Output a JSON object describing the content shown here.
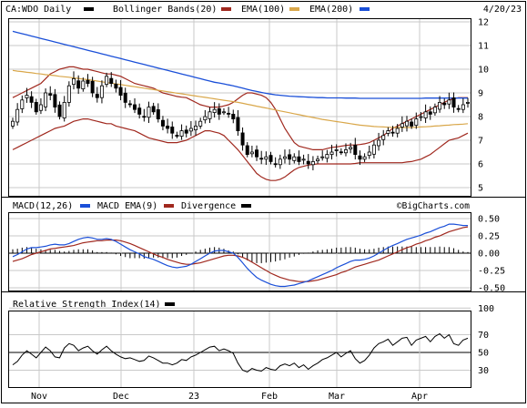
{
  "header": {
    "symbol_label": "CA:WDO Daily",
    "date": "4/20/23",
    "legend": [
      {
        "label": "Bollinger Bands(20)",
        "color": "#000000"
      },
      {
        "label": "EMA(100)",
        "color": "#1a4fd8"
      },
      {
        "label": "EMA(200)",
        "color": "#d9a74a"
      }
    ],
    "legend_colors_after": [
      "#000000",
      "#a0281e",
      "#d9a74a",
      "#1a4fd8"
    ]
  },
  "macd": {
    "title": "MACD(12,26)",
    "ema_label": "MACD EMA(9)",
    "divergence_label": "Divergence",
    "watermark": "©BigCharts.com"
  },
  "rsi": {
    "title": "Relative Strength Index(14)"
  },
  "chart_data": [
    {
      "type": "candlestick",
      "panel": "price",
      "ylim": [
        5,
        12
      ],
      "yticks": [
        "5",
        "6",
        "7",
        "8",
        "9",
        "10",
        "11",
        "12"
      ],
      "x_labels": [
        "Nov",
        "Dec",
        "23",
        "Feb",
        "Mar",
        "Apr"
      ],
      "close": [
        7.8,
        8.3,
        8.7,
        8.9,
        8.6,
        8.2,
        8.5,
        9.0,
        8.9,
        8.4,
        8.0,
        8.6,
        9.3,
        9.6,
        9.2,
        9.5,
        9.4,
        9.0,
        8.8,
        9.3,
        9.7,
        9.4,
        9.2,
        8.9,
        8.6,
        8.5,
        8.3,
        8.1,
        8.0,
        8.4,
        8.2,
        7.9,
        7.6,
        7.5,
        7.3,
        7.2,
        7.4,
        7.3,
        7.5,
        7.6,
        7.8,
        8.0,
        8.2,
        8.3,
        8.1,
        8.2,
        8.1,
        7.9,
        7.4,
        6.8,
        6.4,
        6.5,
        6.3,
        6.2,
        6.3,
        6.1,
        6.0,
        6.2,
        6.3,
        6.2,
        6.3,
        6.1,
        6.2,
        6.0,
        6.1,
        6.2,
        6.3,
        6.4,
        6.5,
        6.6,
        6.5,
        6.6,
        6.7,
        6.4,
        6.2,
        6.3,
        6.5,
        6.8,
        7.0,
        7.2,
        7.4,
        7.3,
        7.5,
        7.7,
        7.8,
        7.6,
        7.9,
        8.0,
        8.2,
        8.1,
        8.4,
        8.6,
        8.5,
        8.7,
        8.4,
        8.3,
        8.5,
        8.6
      ],
      "ema100": [
        11.6,
        11.55,
        11.5,
        11.45,
        11.4,
        11.35,
        11.3,
        11.25,
        11.2,
        11.15,
        11.1,
        11.05,
        11.0,
        10.95,
        10.9,
        10.85,
        10.8,
        10.75,
        10.7,
        10.65,
        10.6,
        10.55,
        10.5,
        10.45,
        10.4,
        10.35,
        10.3,
        10.25,
        10.2,
        10.15,
        10.1,
        10.05,
        10.0,
        9.95,
        9.9,
        9.85,
        9.8,
        9.75,
        9.7,
        9.65,
        9.6,
        9.55,
        9.5,
        9.45,
        9.42,
        9.38,
        9.34,
        9.3,
        9.25,
        9.2,
        9.15,
        9.1,
        9.06,
        9.02,
        8.98,
        8.95,
        8.92,
        8.9,
        8.88,
        8.86,
        8.85,
        8.84,
        8.83,
        8.82,
        8.81,
        8.8,
        8.8,
        8.79,
        8.79,
        8.79,
        8.79,
        8.78,
        8.78,
        8.78,
        8.77,
        8.77,
        8.77,
        8.77,
        8.77,
        8.77,
        8.77,
        8.77,
        8.77,
        8.77,
        8.77,
        8.77,
        8.77,
        8.77,
        8.78,
        8.78,
        8.78,
        8.78,
        8.78,
        8.78,
        8.78,
        8.78,
        8.78,
        8.78
      ],
      "ema200": [
        9.95,
        9.92,
        9.9,
        9.87,
        9.85,
        9.82,
        9.8,
        9.77,
        9.75,
        9.73,
        9.7,
        9.68,
        9.66,
        9.63,
        9.61,
        9.58,
        9.56,
        9.53,
        9.5,
        9.47,
        9.44,
        9.41,
        9.38,
        9.35,
        9.32,
        9.29,
        9.26,
        9.23,
        9.2,
        9.17,
        9.14,
        9.11,
        9.08,
        9.05,
        9.02,
        8.99,
        8.96,
        8.93,
        8.9,
        8.87,
        8.84,
        8.81,
        8.78,
        8.75,
        8.72,
        8.69,
        8.66,
        8.63,
        8.6,
        8.56,
        8.52,
        8.48,
        8.44,
        8.4,
        8.36,
        8.32,
        8.28,
        8.24,
        8.2,
        8.16,
        8.12,
        8.08,
        8.04,
        8.0,
        7.96,
        7.92,
        7.88,
        7.85,
        7.82,
        7.79,
        7.76,
        7.73,
        7.7,
        7.67,
        7.64,
        7.62,
        7.6,
        7.58,
        7.57,
        7.56,
        7.55,
        7.54,
        7.54,
        7.54,
        7.54,
        7.54,
        7.55,
        7.56,
        7.57,
        7.58,
        7.6,
        7.61,
        7.63,
        7.64,
        7.66,
        7.67,
        7.68,
        7.7
      ],
      "bb_upper": [
        8.8,
        8.9,
        9.0,
        9.1,
        9.2,
        9.3,
        9.4,
        9.6,
        9.8,
        9.9,
        10.0,
        10.05,
        10.1,
        10.1,
        10.05,
        10.0,
        10.0,
        9.95,
        9.9,
        9.85,
        9.8,
        9.8,
        9.75,
        9.7,
        9.6,
        9.5,
        9.4,
        9.35,
        9.3,
        9.25,
        9.2,
        9.1,
        9.0,
        8.95,
        8.9,
        8.85,
        8.82,
        8.8,
        8.7,
        8.6,
        8.5,
        8.45,
        8.4,
        8.4,
        8.4,
        8.45,
        8.5,
        8.6,
        8.75,
        8.9,
        9.0,
        9.0,
        8.95,
        8.9,
        8.8,
        8.6,
        8.3,
        7.9,
        7.5,
        7.2,
        6.9,
        6.75,
        6.7,
        6.65,
        6.6,
        6.6,
        6.6,
        6.65,
        6.7,
        6.72,
        6.75,
        6.78,
        6.8,
        6.8,
        6.82,
        6.85,
        6.9,
        7.0,
        7.1,
        7.2,
        7.35,
        7.5,
        7.6,
        7.7,
        7.8,
        7.9,
        8.0,
        8.1,
        8.2,
        8.3,
        8.4,
        8.5,
        8.6,
        8.7,
        8.75,
        8.8,
        8.8,
        8.8
      ],
      "bb_lower": [
        6.6,
        6.7,
        6.8,
        6.9,
        7.0,
        7.1,
        7.2,
        7.3,
        7.4,
        7.5,
        7.55,
        7.6,
        7.7,
        7.8,
        7.85,
        7.9,
        7.9,
        7.85,
        7.8,
        7.75,
        7.7,
        7.7,
        7.6,
        7.55,
        7.5,
        7.45,
        7.4,
        7.3,
        7.2,
        7.1,
        7.05,
        7.0,
        6.95,
        6.9,
        6.9,
        6.9,
        6.95,
        7.0,
        7.1,
        7.2,
        7.3,
        7.4,
        7.4,
        7.35,
        7.3,
        7.2,
        7.0,
        6.8,
        6.6,
        6.35,
        6.1,
        5.85,
        5.6,
        5.45,
        5.35,
        5.3,
        5.3,
        5.35,
        5.45,
        5.6,
        5.75,
        5.85,
        5.9,
        5.95,
        5.98,
        6.0,
        6.0,
        6.0,
        6.0,
        6.0,
        6.0,
        6.0,
        6.0,
        6.02,
        6.05,
        6.05,
        6.05,
        6.05,
        6.05,
        6.05,
        6.05,
        6.05,
        6.05,
        6.05,
        6.08,
        6.1,
        6.15,
        6.2,
        6.3,
        6.4,
        6.55,
        6.7,
        6.85,
        7.0,
        7.05,
        7.1,
        7.2,
        7.3
      ]
    },
    {
      "type": "line",
      "panel": "macd",
      "ylim": [
        -0.55,
        0.55
      ],
      "yticks": [
        "0.50",
        "0.25",
        "0.00",
        "-0.25",
        "-0.50"
      ],
      "series": [
        {
          "name": "MACD(12,26)",
          "color": "#1a4fd8",
          "values": [
            -0.05,
            -0.02,
            0.02,
            0.06,
            0.08,
            0.08,
            0.09,
            0.1,
            0.12,
            0.13,
            0.12,
            0.12,
            0.14,
            0.17,
            0.2,
            0.22,
            0.23,
            0.22,
            0.2,
            0.2,
            0.21,
            0.2,
            0.17,
            0.13,
            0.09,
            0.05,
            0.02,
            -0.01,
            -0.05,
            -0.07,
            -0.09,
            -0.12,
            -0.15,
            -0.18,
            -0.2,
            -0.21,
            -0.2,
            -0.19,
            -0.16,
            -0.12,
            -0.08,
            -0.04,
            0.0,
            0.03,
            0.04,
            0.04,
            0.02,
            0.0,
            -0.06,
            -0.14,
            -0.22,
            -0.29,
            -0.35,
            -0.39,
            -0.42,
            -0.45,
            -0.47,
            -0.48,
            -0.48,
            -0.47,
            -0.46,
            -0.44,
            -0.42,
            -0.4,
            -0.37,
            -0.34,
            -0.31,
            -0.28,
            -0.25,
            -0.21,
            -0.18,
            -0.15,
            -0.12,
            -0.1,
            -0.1,
            -0.09,
            -0.07,
            -0.04,
            0.0,
            0.04,
            0.08,
            0.11,
            0.14,
            0.17,
            0.2,
            0.22,
            0.24,
            0.26,
            0.29,
            0.31,
            0.34,
            0.37,
            0.39,
            0.42,
            0.42,
            0.41,
            0.4,
            0.4
          ]
        },
        {
          "name": "MACD EMA(9)",
          "color": "#a0281e",
          "values": [
            -0.12,
            -0.1,
            -0.08,
            -0.05,
            -0.02,
            0.0,
            0.02,
            0.04,
            0.06,
            0.07,
            0.08,
            0.09,
            0.1,
            0.11,
            0.13,
            0.15,
            0.16,
            0.17,
            0.18,
            0.18,
            0.19,
            0.19,
            0.19,
            0.18,
            0.16,
            0.14,
            0.11,
            0.08,
            0.05,
            0.02,
            -0.01,
            -0.04,
            -0.06,
            -0.09,
            -0.11,
            -0.13,
            -0.15,
            -0.16,
            -0.16,
            -0.15,
            -0.14,
            -0.12,
            -0.1,
            -0.08,
            -0.06,
            -0.04,
            -0.03,
            -0.03,
            -0.04,
            -0.06,
            -0.09,
            -0.13,
            -0.17,
            -0.21,
            -0.25,
            -0.29,
            -0.32,
            -0.35,
            -0.37,
            -0.39,
            -0.4,
            -0.41,
            -0.41,
            -0.41,
            -0.4,
            -0.39,
            -0.37,
            -0.35,
            -0.33,
            -0.31,
            -0.28,
            -0.26,
            -0.23,
            -0.2,
            -0.18,
            -0.16,
            -0.14,
            -0.12,
            -0.1,
            -0.07,
            -0.04,
            -0.01,
            0.02,
            0.05,
            0.08,
            0.1,
            0.13,
            0.15,
            0.18,
            0.2,
            0.23,
            0.25,
            0.28,
            0.31,
            0.33,
            0.35,
            0.37,
            0.38
          ]
        }
      ]
    },
    {
      "type": "line",
      "panel": "rsi",
      "ylim": [
        10,
        100
      ],
      "yticks": [
        "100",
        "70",
        "50",
        "30"
      ],
      "series": [
        {
          "name": "Relative Strength Index(14)",
          "color": "#000000",
          "values": [
            36,
            40,
            47,
            52,
            48,
            44,
            50,
            56,
            52,
            45,
            44,
            55,
            60,
            58,
            52,
            55,
            57,
            52,
            48,
            53,
            57,
            52,
            48,
            45,
            43,
            44,
            42,
            40,
            41,
            46,
            44,
            41,
            38,
            38,
            36,
            38,
            42,
            41,
            45,
            47,
            50,
            53,
            56,
            57,
            52,
            54,
            52,
            49,
            38,
            30,
            28,
            32,
            30,
            29,
            33,
            31,
            30,
            35,
            37,
            35,
            38,
            33,
            36,
            31,
            35,
            38,
            42,
            44,
            47,
            50,
            45,
            49,
            52,
            43,
            38,
            41,
            47,
            55,
            60,
            62,
            65,
            58,
            62,
            66,
            67,
            58,
            64,
            66,
            68,
            62,
            68,
            71,
            66,
            70,
            60,
            58,
            64,
            66
          ]
        }
      ]
    }
  ]
}
